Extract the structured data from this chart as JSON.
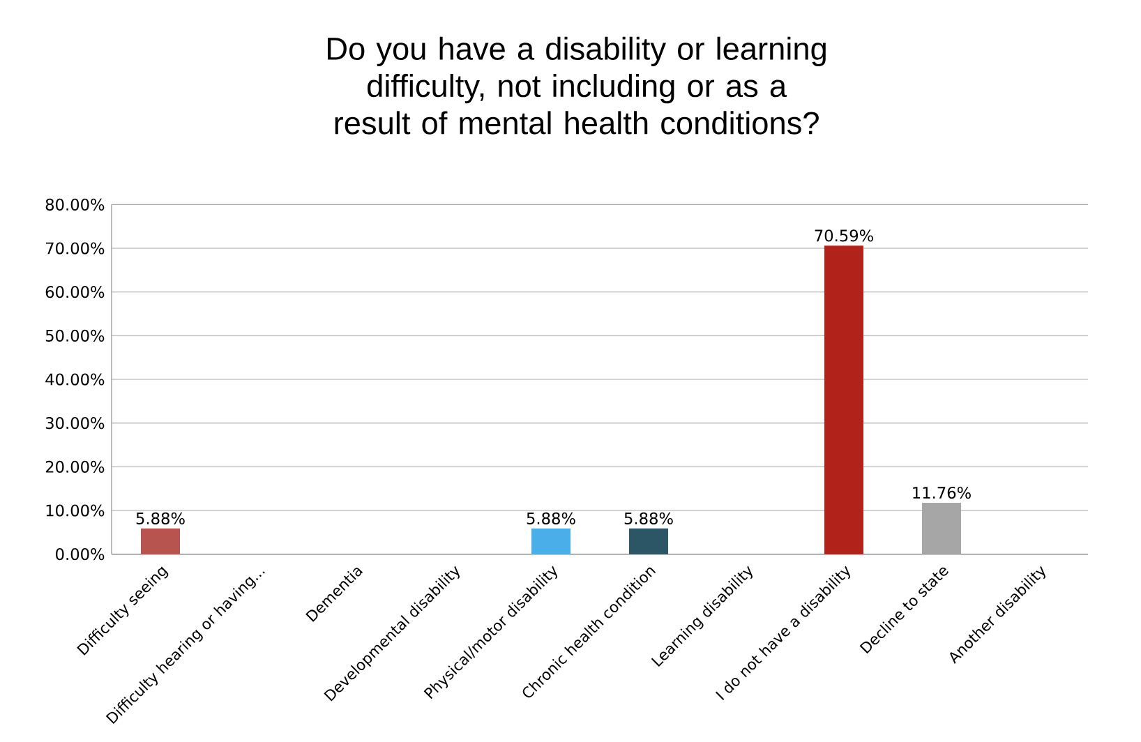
{
  "chart_data": {
    "type": "bar",
    "title": "Do you have a disability or learning difficulty, not including or as a result of mental health conditions?",
    "categories": [
      "Difficulty seeing",
      "Difficulty hearing or having...",
      "Dementia",
      "Developmental disability",
      "Physical/motor disability",
      "Chronic health condition",
      "Learning disability",
      "I do not have a disability",
      "Decline to state",
      "Another disability"
    ],
    "values": [
      5.88,
      0,
      0,
      0,
      5.88,
      5.88,
      0,
      70.59,
      11.76,
      0
    ],
    "colors": [
      "#b85450",
      "#b85450",
      "#b85450",
      "#b85450",
      "#4aaee8",
      "#2c5666",
      "#b85450",
      "#b0221a",
      "#a6a6a6",
      "#b85450"
    ],
    "value_labels": [
      "5.88%",
      null,
      null,
      null,
      "5.88%",
      "5.88%",
      null,
      "70.59%",
      "11.76%",
      null
    ],
    "ylim": [
      0,
      80
    ],
    "yticks": [
      {
        "value": 0,
        "label": "0.00%"
      },
      {
        "value": 10,
        "label": "10.00%"
      },
      {
        "value": 20,
        "label": "20.00%"
      },
      {
        "value": 30,
        "label": "30.00%"
      },
      {
        "value": 40,
        "label": "40.00%"
      },
      {
        "value": 50,
        "label": "50.00%"
      },
      {
        "value": 60,
        "label": "60.00%"
      },
      {
        "value": 70,
        "label": "70.00%"
      },
      {
        "value": 80,
        "label": "80.00%"
      }
    ],
    "grid": "y"
  }
}
